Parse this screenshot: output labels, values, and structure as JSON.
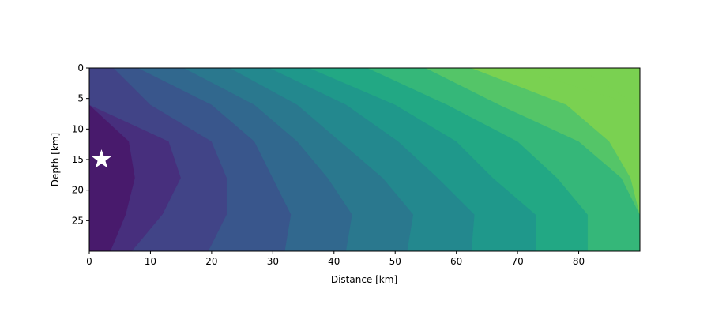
{
  "chart_data": {
    "type": "heatmap",
    "title": "",
    "xlabel": "Distance [km]",
    "ylabel": "Depth [km]",
    "xlim": [
      0,
      90
    ],
    "ylim": [
      0,
      30
    ],
    "y_inverted": true,
    "xticks": [
      0,
      10,
      20,
      30,
      40,
      50,
      60,
      70,
      80
    ],
    "yticks": [
      0,
      5,
      10,
      15,
      20,
      25
    ],
    "colormap": "viridis",
    "grid": false,
    "legend": "none",
    "contour_colors": [
      "#481a6c",
      "#472f7d",
      "#414487",
      "#39568c",
      "#31688e",
      "#2a788e",
      "#23888e",
      "#1f988b",
      "#22a884",
      "#35b779",
      "#54c568",
      "#7ad151"
    ],
    "contour_boundaries": [
      {
        "depths": [
          0,
          6,
          12,
          18,
          24,
          30
        ],
        "distances": [
          0,
          0,
          13,
          15,
          12,
          7
        ]
      },
      {
        "depths": [
          0,
          6,
          12,
          18,
          24,
          30
        ],
        "distances": [
          8,
          20,
          27,
          30,
          33,
          32
        ]
      },
      {
        "depths": [
          0,
          6,
          12,
          18,
          24,
          30
        ],
        "distances": [
          23,
          34,
          41,
          48,
          53,
          52
        ]
      },
      {
        "depths": [
          0,
          6,
          12,
          18,
          24,
          30
        ],
        "distances": [
          36,
          50,
          60,
          66,
          73,
          73
        ]
      },
      {
        "depths": [
          0,
          6,
          12,
          18,
          24,
          30
        ],
        "distances": [
          55,
          67,
          80,
          87,
          90,
          90
        ]
      },
      {
        "depths": [
          0,
          6,
          12,
          18,
          24,
          30
        ],
        "distances": [
          70,
          89,
          90,
          90,
          90,
          90
        ]
      }
    ],
    "source_marker": {
      "symbol": "star",
      "x": 2,
      "y": 15,
      "color": "#ffffff"
    }
  }
}
